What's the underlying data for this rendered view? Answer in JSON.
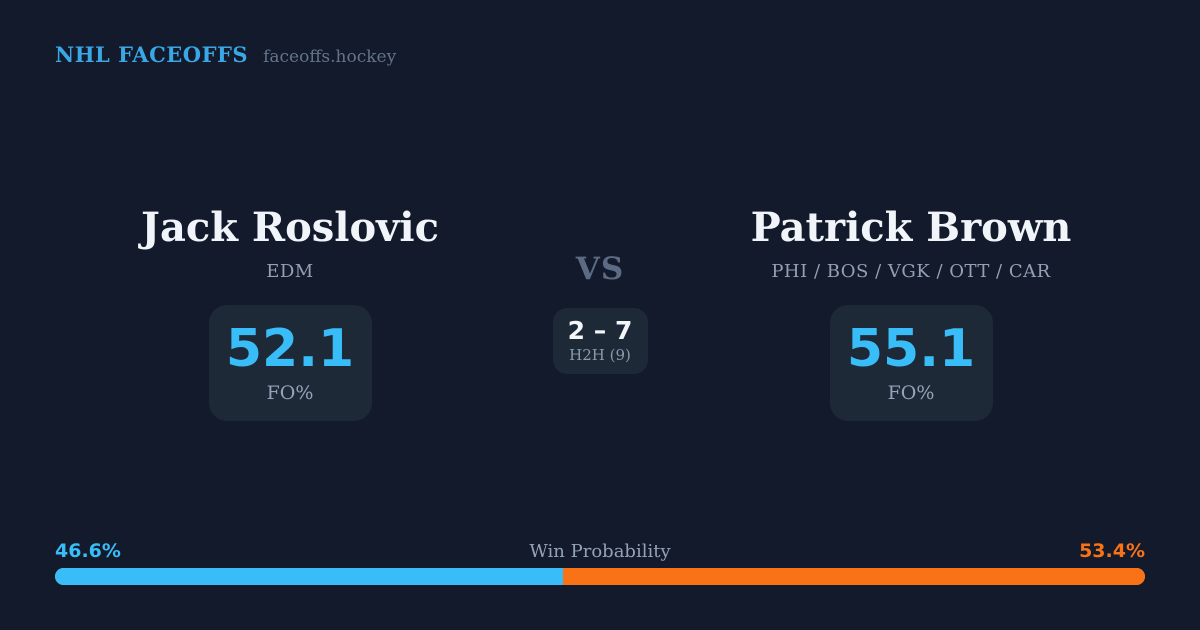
{
  "brand": {
    "title": "NHL FACEOFFS",
    "domain": "faceoffs.hockey"
  },
  "matchup": {
    "vs_label": "VS",
    "h2h": {
      "score": "2 – 7",
      "label": "H2H (9)"
    },
    "players": [
      {
        "name": "Jack Roslovic",
        "teams": "EDM",
        "fo_value": "52.1",
        "fo_label": "FO%"
      },
      {
        "name": "Patrick Brown",
        "teams": "PHI / BOS / VGK / OTT / CAR",
        "fo_value": "55.1",
        "fo_label": "FO%"
      }
    ]
  },
  "win_probability": {
    "title": "Win Probability",
    "left_pct_label": "46.6%",
    "right_pct_label": "53.4%",
    "left_value": 46.6,
    "right_value": 53.4,
    "left_color": "#38bdf8",
    "right_color": "#f97316"
  },
  "colors": {
    "background": "#121a2b",
    "card_background": "#1e2937",
    "brand_blue": "#3aa7e6",
    "accent_blue": "#38bdf8",
    "accent_orange": "#f97316",
    "text_primary": "#f1f5f9",
    "text_muted": "#94a3b8",
    "text_dim": "#64748b"
  }
}
